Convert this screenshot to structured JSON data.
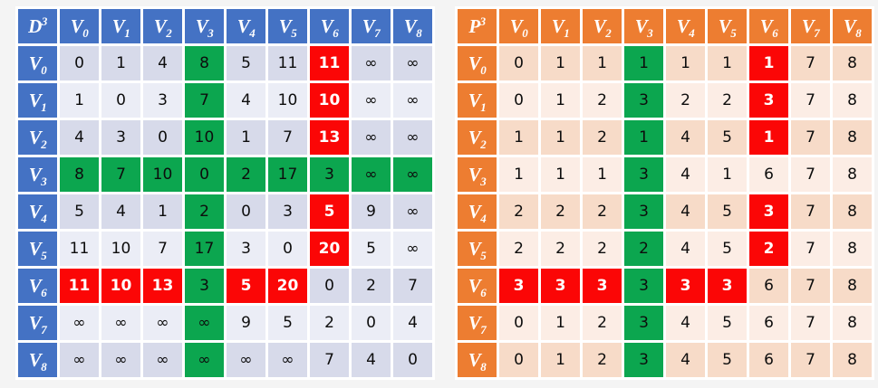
{
  "page": {
    "background": "#f4f4f4",
    "cell_gap_color": "#ffffff",
    "text_color": "#0d0d0d"
  },
  "highlight": {
    "green": "#0ca64f",
    "red": "#fb0606",
    "red_text": "#ffffff"
  },
  "chart_data": [
    {
      "type": "table",
      "key": "d3",
      "title": "D^3 distance matrix",
      "corner": {
        "base": "D",
        "sup": "3"
      },
      "theme": {
        "header_bg": "#4472c4",
        "header_text": "#ffffff",
        "row_dark": "#d7daea",
        "row_light": "#ebedf6"
      },
      "columns": [
        {
          "base": "V",
          "sub": "0"
        },
        {
          "base": "V",
          "sub": "1"
        },
        {
          "base": "V",
          "sub": "2"
        },
        {
          "base": "V",
          "sub": "3"
        },
        {
          "base": "V",
          "sub": "4"
        },
        {
          "base": "V",
          "sub": "5"
        },
        {
          "base": "V",
          "sub": "6"
        },
        {
          "base": "V",
          "sub": "7"
        },
        {
          "base": "V",
          "sub": "8"
        }
      ],
      "rows": [
        {
          "header": {
            "base": "V",
            "sub": "0"
          },
          "cells": [
            {
              "v": "0"
            },
            {
              "v": "1"
            },
            {
              "v": "4"
            },
            {
              "v": "8",
              "hl": "g"
            },
            {
              "v": "5"
            },
            {
              "v": "11"
            },
            {
              "v": "11",
              "hl": "r"
            },
            {
              "v": "∞"
            },
            {
              "v": "∞"
            }
          ]
        },
        {
          "header": {
            "base": "V",
            "sub": "1"
          },
          "cells": [
            {
              "v": "1"
            },
            {
              "v": "0"
            },
            {
              "v": "3"
            },
            {
              "v": "7",
              "hl": "g"
            },
            {
              "v": "4"
            },
            {
              "v": "10"
            },
            {
              "v": "10",
              "hl": "r"
            },
            {
              "v": "∞"
            },
            {
              "v": "∞"
            }
          ]
        },
        {
          "header": {
            "base": "V",
            "sub": "2"
          },
          "cells": [
            {
              "v": "4"
            },
            {
              "v": "3"
            },
            {
              "v": "0"
            },
            {
              "v": "10",
              "hl": "g"
            },
            {
              "v": "1"
            },
            {
              "v": "7"
            },
            {
              "v": "13",
              "hl": "r"
            },
            {
              "v": "∞"
            },
            {
              "v": "∞"
            }
          ]
        },
        {
          "header": {
            "base": "V",
            "sub": "3"
          },
          "cells": [
            {
              "v": "8",
              "hl": "g"
            },
            {
              "v": "7",
              "hl": "g"
            },
            {
              "v": "10",
              "hl": "g"
            },
            {
              "v": "0",
              "hl": "g"
            },
            {
              "v": "2",
              "hl": "g"
            },
            {
              "v": "17",
              "hl": "g"
            },
            {
              "v": "3",
              "hl": "g"
            },
            {
              "v": "∞",
              "hl": "g"
            },
            {
              "v": "∞",
              "hl": "g"
            }
          ]
        },
        {
          "header": {
            "base": "V",
            "sub": "4"
          },
          "cells": [
            {
              "v": "5"
            },
            {
              "v": "4"
            },
            {
              "v": "1"
            },
            {
              "v": "2",
              "hl": "g"
            },
            {
              "v": "0"
            },
            {
              "v": "3"
            },
            {
              "v": "5",
              "hl": "r"
            },
            {
              "v": "9"
            },
            {
              "v": "∞"
            }
          ]
        },
        {
          "header": {
            "base": "V",
            "sub": "5"
          },
          "cells": [
            {
              "v": "11"
            },
            {
              "v": "10"
            },
            {
              "v": "7"
            },
            {
              "v": "17",
              "hl": "g"
            },
            {
              "v": "3"
            },
            {
              "v": "0"
            },
            {
              "v": "20",
              "hl": "r"
            },
            {
              "v": "5"
            },
            {
              "v": "∞"
            }
          ]
        },
        {
          "header": {
            "base": "V",
            "sub": "6"
          },
          "cells": [
            {
              "v": "11",
              "hl": "r"
            },
            {
              "v": "10",
              "hl": "r"
            },
            {
              "v": "13",
              "hl": "r"
            },
            {
              "v": "3",
              "hl": "g"
            },
            {
              "v": "5",
              "hl": "r"
            },
            {
              "v": "20",
              "hl": "r"
            },
            {
              "v": "0"
            },
            {
              "v": "2"
            },
            {
              "v": "7"
            }
          ]
        },
        {
          "header": {
            "base": "V",
            "sub": "7"
          },
          "cells": [
            {
              "v": "∞"
            },
            {
              "v": "∞"
            },
            {
              "v": "∞"
            },
            {
              "v": "∞",
              "hl": "g"
            },
            {
              "v": "9"
            },
            {
              "v": "5"
            },
            {
              "v": "2"
            },
            {
              "v": "0"
            },
            {
              "v": "4"
            }
          ]
        },
        {
          "header": {
            "base": "V",
            "sub": "8"
          },
          "cells": [
            {
              "v": "∞"
            },
            {
              "v": "∞"
            },
            {
              "v": "∞"
            },
            {
              "v": "∞",
              "hl": "g"
            },
            {
              "v": "∞"
            },
            {
              "v": "∞"
            },
            {
              "v": "7"
            },
            {
              "v": "4"
            },
            {
              "v": "0"
            }
          ]
        }
      ]
    },
    {
      "type": "table",
      "key": "p3",
      "title": "P^3 predecessor matrix",
      "corner": {
        "base": "P",
        "sup": "3"
      },
      "theme": {
        "header_bg": "#ed7d31",
        "header_text": "#ffffff",
        "row_dark": "#f7dbc8",
        "row_light": "#fcede5"
      },
      "columns": [
        {
          "base": "V",
          "sub": "0"
        },
        {
          "base": "V",
          "sub": "1"
        },
        {
          "base": "V",
          "sub": "2"
        },
        {
          "base": "V",
          "sub": "3"
        },
        {
          "base": "V",
          "sub": "4"
        },
        {
          "base": "V",
          "sub": "5"
        },
        {
          "base": "V",
          "sub": "6"
        },
        {
          "base": "V",
          "sub": "7"
        },
        {
          "base": "V",
          "sub": "8"
        }
      ],
      "rows": [
        {
          "header": {
            "base": "V",
            "sub": "0"
          },
          "cells": [
            {
              "v": "0"
            },
            {
              "v": "1"
            },
            {
              "v": "1"
            },
            {
              "v": "1",
              "hl": "g"
            },
            {
              "v": "1"
            },
            {
              "v": "1"
            },
            {
              "v": "1",
              "hl": "r"
            },
            {
              "v": "7"
            },
            {
              "v": "8"
            }
          ]
        },
        {
          "header": {
            "base": "V",
            "sub": "1"
          },
          "cells": [
            {
              "v": "0"
            },
            {
              "v": "1"
            },
            {
              "v": "2"
            },
            {
              "v": "3",
              "hl": "g"
            },
            {
              "v": "2"
            },
            {
              "v": "2"
            },
            {
              "v": "3",
              "hl": "r"
            },
            {
              "v": "7"
            },
            {
              "v": "8"
            }
          ]
        },
        {
          "header": {
            "base": "V",
            "sub": "2"
          },
          "cells": [
            {
              "v": "1"
            },
            {
              "v": "1"
            },
            {
              "v": "2"
            },
            {
              "v": "1",
              "hl": "g"
            },
            {
              "v": "4"
            },
            {
              "v": "5"
            },
            {
              "v": "1",
              "hl": "r"
            },
            {
              "v": "7"
            },
            {
              "v": "8"
            }
          ]
        },
        {
          "header": {
            "base": "V",
            "sub": "3"
          },
          "cells": [
            {
              "v": "1"
            },
            {
              "v": "1"
            },
            {
              "v": "1"
            },
            {
              "v": "3",
              "hl": "g"
            },
            {
              "v": "4"
            },
            {
              "v": "1"
            },
            {
              "v": "6"
            },
            {
              "v": "7"
            },
            {
              "v": "8"
            }
          ]
        },
        {
          "header": {
            "base": "V",
            "sub": "4"
          },
          "cells": [
            {
              "v": "2"
            },
            {
              "v": "2"
            },
            {
              "v": "2"
            },
            {
              "v": "3",
              "hl": "g"
            },
            {
              "v": "4"
            },
            {
              "v": "5"
            },
            {
              "v": "3",
              "hl": "r"
            },
            {
              "v": "7"
            },
            {
              "v": "8"
            }
          ]
        },
        {
          "header": {
            "base": "V",
            "sub": "5"
          },
          "cells": [
            {
              "v": "2"
            },
            {
              "v": "2"
            },
            {
              "v": "2"
            },
            {
              "v": "2",
              "hl": "g"
            },
            {
              "v": "4"
            },
            {
              "v": "5"
            },
            {
              "v": "2",
              "hl": "r"
            },
            {
              "v": "7"
            },
            {
              "v": "8"
            }
          ]
        },
        {
          "header": {
            "base": "V",
            "sub": "6"
          },
          "cells": [
            {
              "v": "3",
              "hl": "r"
            },
            {
              "v": "3",
              "hl": "r"
            },
            {
              "v": "3",
              "hl": "r"
            },
            {
              "v": "3",
              "hl": "g"
            },
            {
              "v": "3",
              "hl": "r"
            },
            {
              "v": "3",
              "hl": "r"
            },
            {
              "v": "6"
            },
            {
              "v": "7"
            },
            {
              "v": "8"
            }
          ]
        },
        {
          "header": {
            "base": "V",
            "sub": "7"
          },
          "cells": [
            {
              "v": "0"
            },
            {
              "v": "1"
            },
            {
              "v": "2"
            },
            {
              "v": "3",
              "hl": "g"
            },
            {
              "v": "4"
            },
            {
              "v": "5"
            },
            {
              "v": "6"
            },
            {
              "v": "7"
            },
            {
              "v": "8"
            }
          ]
        },
        {
          "header": {
            "base": "V",
            "sub": "8"
          },
          "cells": [
            {
              "v": "0"
            },
            {
              "v": "1"
            },
            {
              "v": "2"
            },
            {
              "v": "3",
              "hl": "g"
            },
            {
              "v": "4"
            },
            {
              "v": "5"
            },
            {
              "v": "6"
            },
            {
              "v": "7"
            },
            {
              "v": "8"
            }
          ]
        }
      ]
    }
  ]
}
